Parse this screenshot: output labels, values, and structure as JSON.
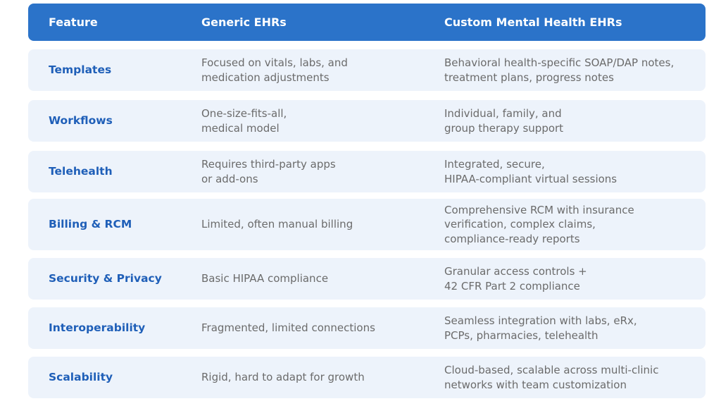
{
  "table": {
    "header": [
      "Feature",
      "Generic EHRs",
      "Custom Mental Health EHRs"
    ],
    "rows": [
      [
        [
          "Templates"
        ],
        [
          "Focused on vitals, labs, and",
          "medication adjustments"
        ],
        [
          "Behavioral health-specific SOAP/DAP notes,",
          "treatment plans, progress notes"
        ]
      ],
      [
        [
          "Workflows"
        ],
        [
          "One-size-fits-all,",
          "medical model"
        ],
        [
          "Individual, family, and",
          "group therapy support"
        ]
      ],
      [
        [
          "Telehealth"
        ],
        [
          "Requires third-party apps",
          "or add-ons"
        ],
        [
          "Integrated, secure,",
          "HIPAA-compliant virtual sessions"
        ]
      ],
      [
        [
          "Billing & RCM"
        ],
        [
          "Limited, often manual billing"
        ],
        [
          "Comprehensive RCM with insurance",
          "verification, complex claims,",
          "compliance-ready reports"
        ]
      ],
      [
        [
          "Security & Privacy"
        ],
        [
          "Basic HIPAA compliance"
        ],
        [
          "Granular access controls +",
          "42 CFR Part 2 compliance"
        ]
      ],
      [
        [
          "Interoperability"
        ],
        [
          "Fragmented, limited connections"
        ],
        [
          "Seamless integration with labs, eRx,",
          "PCPs, pharmacies, telehealth"
        ]
      ],
      [
        [
          "Scalability"
        ],
        [
          "Rigid, hard to adapt for growth"
        ],
        [
          "Cloud-based, scalable across multi-clinic",
          "networks with team customization"
        ]
      ]
    ]
  }
}
